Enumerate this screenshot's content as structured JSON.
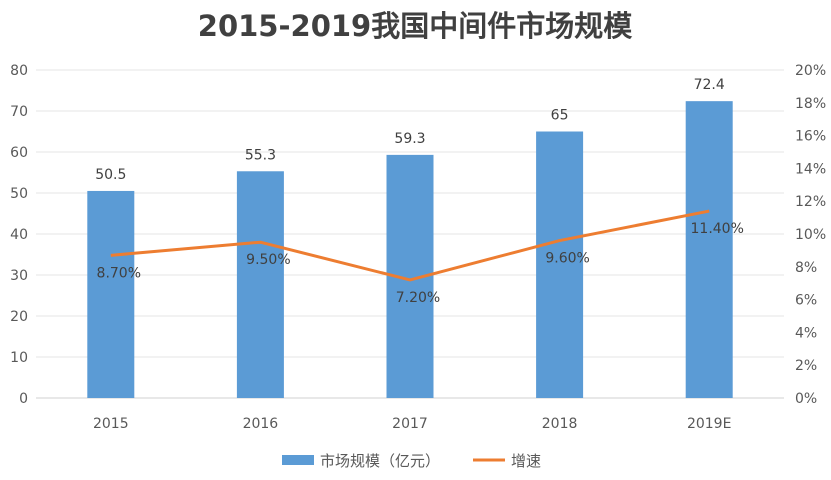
{
  "chart_data": {
    "type": "bar",
    "title": "2015-2019我国中间件市场规模",
    "categories": [
      "2015",
      "2016",
      "2017",
      "2018",
      "2019E"
    ],
    "series": [
      {
        "name": "市场规模（亿元）",
        "type": "bar",
        "axis": "left",
        "values": [
          50.5,
          55.3,
          59.3,
          65,
          72.4
        ],
        "labels": [
          "50.5",
          "55.3",
          "59.3",
          "65",
          "72.4"
        ],
        "color": "#5B9BD5"
      },
      {
        "name": "增速",
        "type": "line",
        "axis": "right",
        "values": [
          8.7,
          9.5,
          7.2,
          9.6,
          11.4
        ],
        "labels": [
          "8.70%",
          "9.50%",
          "7.20%",
          "9.60%",
          "11.40%"
        ],
        "color": "#ED7D31"
      }
    ],
    "ylim": [
      0,
      80
    ],
    "yticks": [
      "0",
      "10",
      "20",
      "30",
      "40",
      "50",
      "60",
      "70",
      "80"
    ],
    "y2lim": [
      0,
      20
    ],
    "y2ticks": [
      "0%",
      "2%",
      "4%",
      "6%",
      "8%",
      "10%",
      "12%",
      "14%",
      "16%",
      "18%",
      "20%"
    ],
    "grid": true,
    "legend": "bottom"
  }
}
